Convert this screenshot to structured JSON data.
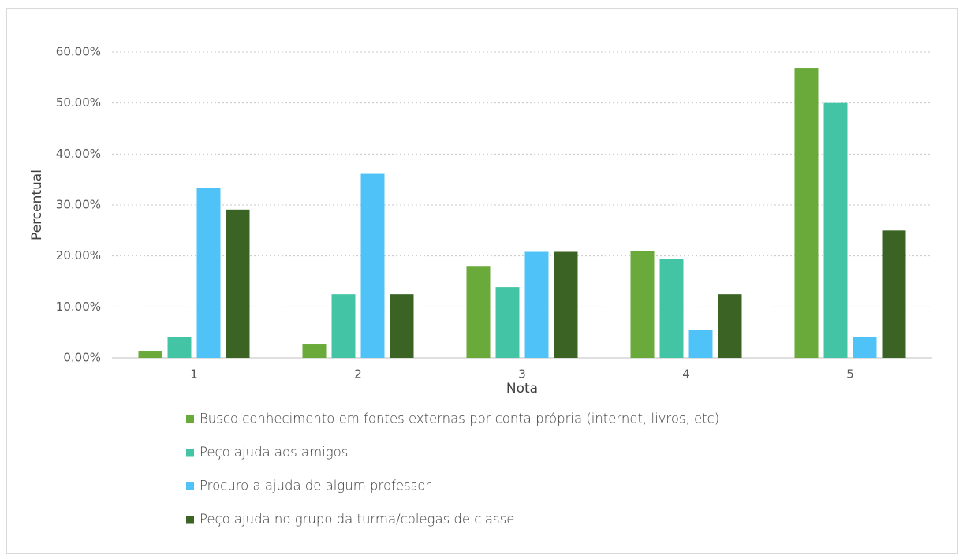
{
  "chart_data": {
    "type": "bar",
    "x_label": "Nota",
    "y_label": "Percentual",
    "categories": [
      "1",
      "2",
      "3",
      "4",
      "5"
    ],
    "series": [
      {
        "name": "Busco conhecimento em fontes externas por conta própria (internet, livros, etc)",
        "color": "#6aaa3a",
        "values": [
          1.39,
          2.78,
          17.9,
          20.9,
          56.9
        ]
      },
      {
        "name": "Peço ajuda aos amigos",
        "color": "#43c4a4",
        "values": [
          4.17,
          12.5,
          13.9,
          19.4,
          50
        ]
      },
      {
        "name": "Procuro a ajuda de algum professor",
        "color": "#4fc3f7",
        "values": [
          33.3,
          36.1,
          20.8,
          5.56,
          4.17
        ]
      },
      {
        "name": "Peço ajuda no grupo da turma/colegas de classe",
        "color": "#3b6424",
        "values": [
          29.1,
          12.5,
          20.8,
          12.5,
          25
        ]
      }
    ],
    "ylim": [
      0,
      60
    ],
    "yticks": [
      {
        "value": 0,
        "label": "0.00%"
      },
      {
        "value": 10,
        "label": "10.00%"
      },
      {
        "value": 20,
        "label": "20.00%"
      },
      {
        "value": 30,
        "label": "30.00%"
      },
      {
        "value": 40,
        "label": "40.00%"
      },
      {
        "value": 50,
        "label": "50.00%"
      },
      {
        "value": 60,
        "label": "60.00%"
      }
    ],
    "grid": true,
    "legend": "bottom"
  }
}
